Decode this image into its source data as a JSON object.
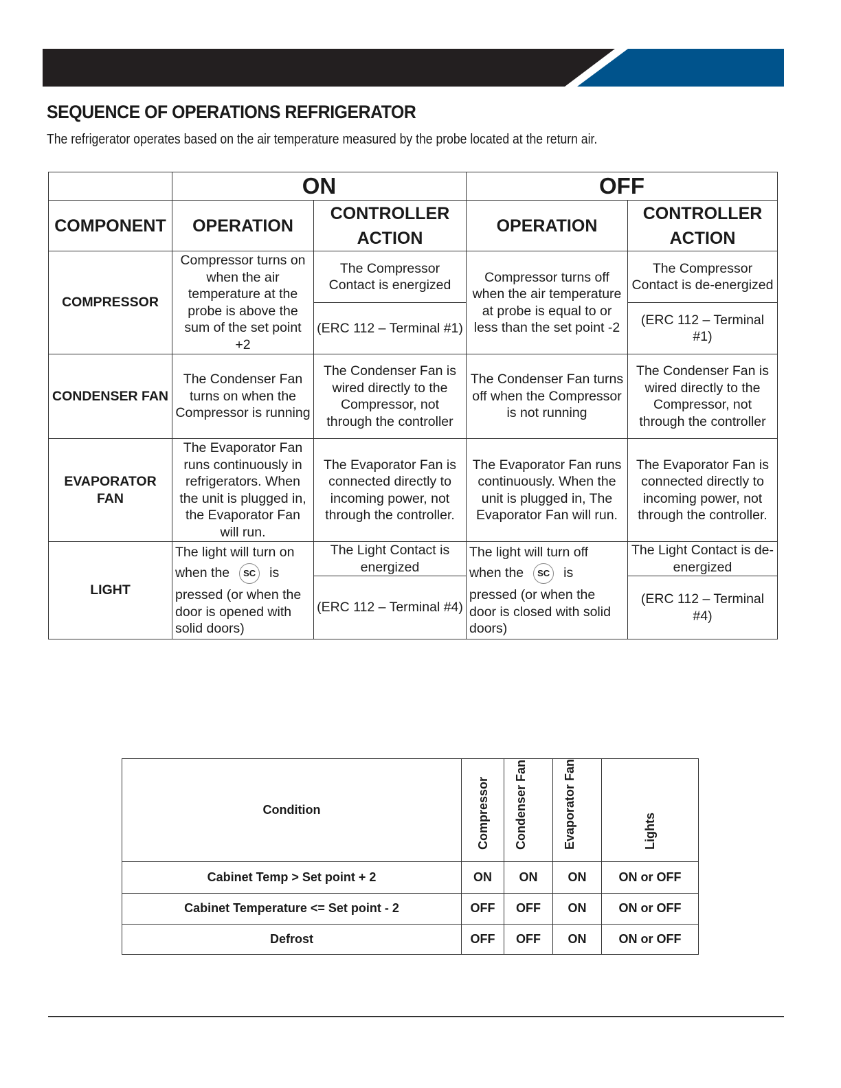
{
  "header": {
    "title": "SEQUENCE OF OPERATIONS REFRIGERATOR",
    "subtitle": "The refrigerator operates based on the air temperature measured by the probe located at the return air.",
    "colors": {
      "dark": "#231f20",
      "blue": "#00538c"
    }
  },
  "table1": {
    "on": "ON",
    "off": "OFF",
    "headers": [
      "COMPONENT",
      "OPERATION",
      "CONTROLLER ACTION",
      "OPERATION",
      "CONTROLLER ACTION"
    ],
    "compressor": {
      "component": "COMPRESSOR",
      "on_operation": "Compressor turns on when the air temperature at the probe is above the sum of the set point +2",
      "on_action": "The Compressor Contact is energized",
      "on_terminal": "(ERC 112 – Terminal #1)",
      "off_operation": "Compressor turns off when the air temperature at probe is equal to or less than the set point -2",
      "off_action": "The Compressor Contact is de-energized",
      "off_terminal": "(ERC 112 – Terminal #1)"
    },
    "condenser": {
      "component": "CONDENSER FAN",
      "on_operation": "The Condenser Fan turns on  when the Compressor is running",
      "on_action": "The Condenser Fan is wired directly to the Compressor, not through the controller",
      "off_operation": "The Condenser Fan turns off when the Compressor is not running",
      "off_action": "The Condenser Fan is wired directly to the Compressor, not through the controller"
    },
    "evaporator": {
      "component": "EVAPORATOR FAN",
      "on_operation": "The Evaporator Fan runs continuously in refrigerators.  When the unit is plugged in, the Evaporator Fan will run.",
      "on_action": "The Evaporator Fan is connected directly to incoming power, not through the controller.",
      "off_operation": "The Evaporator Fan runs continuously. When the unit is plugged in, The Evaporator Fan will run.",
      "off_action": "The Evaporator Fan is connected directly to incoming power, not through the controller."
    },
    "light": {
      "component": "LIGHT",
      "on_op_1": "The light will turn on",
      "on_op_2": "when the",
      "on_op_3": "is",
      "on_op_4": "pressed (or when the door is opened with solid doors)",
      "sc_button": "SC",
      "on_action": "The Light Contact is energized",
      "on_terminal": "(ERC 112 – Terminal #4)",
      "off_op_1": "The light will turn off",
      "off_op_2": "when the",
      "off_op_3": "is",
      "off_op_4": "pressed (or when the door is closed with solid doors)",
      "off_action": "The Light Contact is de-energized",
      "off_terminal": "(ERC 112 – Terminal #4)"
    }
  },
  "table2": {
    "headers": [
      "Condition",
      "Compressor",
      "Condenser Fan",
      "Evaporator Fan",
      "Lights"
    ],
    "rows": [
      [
        "Cabinet Temp > Set point + 2",
        "ON",
        "ON",
        "ON",
        "ON or OFF"
      ],
      [
        "Cabinet Temperature <= Set point - 2",
        "OFF",
        "OFF",
        "ON",
        "ON or OFF"
      ],
      [
        "Defrost",
        "OFF",
        "OFF",
        "ON",
        "ON or OFF"
      ]
    ]
  }
}
